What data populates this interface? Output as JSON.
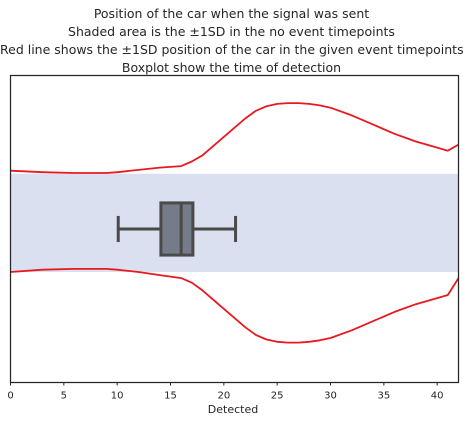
{
  "chart_data": {
    "type": "boxplot",
    "title_lines": [
      "Position of the car when the signal was sent",
      "Shaded area is the  ±1SD in the no event timepoints",
      "Red line shows the ±1SD position of the car in the given event timepoints",
      "Boxplot show the time of detection"
    ],
    "xlabel": "Detected",
    "xlim": [
      0,
      42
    ],
    "ylim": [
      -1,
      1
    ],
    "xticks": [
      "0",
      "5",
      "10",
      "15",
      "20",
      "25",
      "30",
      "35",
      "40"
    ],
    "grid": false,
    "shaded_band": {
      "y_low": -0.28,
      "y_high": 0.36,
      "color": "#dae0ef"
    },
    "red_line": {
      "color": "#e8191f",
      "x": [
        0,
        3,
        6,
        9,
        10,
        12,
        14,
        16,
        17,
        18,
        20,
        22,
        23,
        24,
        25,
        26,
        27,
        28,
        29,
        30,
        32,
        34,
        36,
        38,
        40,
        41,
        42
      ],
      "upper": [
        0.38,
        0.37,
        0.365,
        0.365,
        0.37,
        0.385,
        0.4,
        0.41,
        0.44,
        0.48,
        0.6,
        0.72,
        0.77,
        0.8,
        0.815,
        0.82,
        0.82,
        0.815,
        0.805,
        0.79,
        0.74,
        0.68,
        0.62,
        0.57,
        0.53,
        0.51,
        0.55
      ],
      "lower": [
        -0.28,
        -0.265,
        -0.26,
        -0.26,
        -0.265,
        -0.28,
        -0.3,
        -0.32,
        -0.35,
        -0.4,
        -0.52,
        -0.64,
        -0.69,
        -0.72,
        -0.735,
        -0.74,
        -0.74,
        -0.735,
        -0.725,
        -0.71,
        -0.66,
        -0.6,
        -0.54,
        -0.49,
        -0.45,
        -0.43,
        -0.32
      ]
    },
    "boxplot": {
      "whisker_low": 10.1,
      "q1": 14.1,
      "median": 16.0,
      "q3": 17.1,
      "whisker_high": 21.1,
      "y_center": 0.0,
      "height": 0.34,
      "fill": "#757b88",
      "edge": "#4a4a4a"
    }
  }
}
